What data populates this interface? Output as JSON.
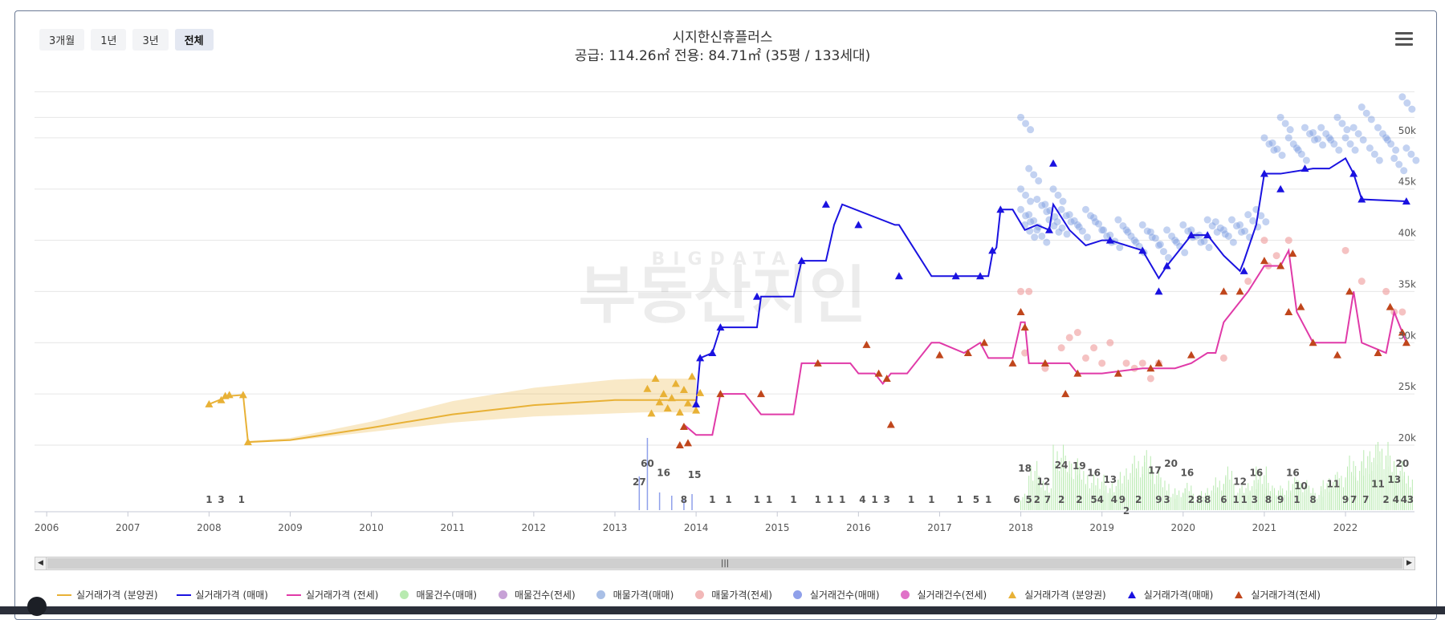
{
  "range_buttons": [
    "3개월",
    "1년",
    "3년",
    "전체"
  ],
  "active_range": "전체",
  "title": "시지한신휴플러스",
  "subtitle": "공급: 114.26㎡ 전용: 84.71㎡ (35평 / 133세대)",
  "watermark": {
    "small": "BIGDATA",
    "large": "부동산지인"
  },
  "legend": [
    {
      "label": "실거래가격 (분양권)",
      "symbol": "line",
      "color": "#e8b136"
    },
    {
      "label": "실거래가격 (매매)",
      "symbol": "line",
      "color": "#1a12e0"
    },
    {
      "label": "실거래가격 (전세)",
      "symbol": "line",
      "color": "#e03aa8"
    },
    {
      "label": "매물건수(매매)",
      "symbol": "circle",
      "color": "#b8eab0"
    },
    {
      "label": "매물건수(전세)",
      "symbol": "circle",
      "color": "#c7a1d6"
    },
    {
      "label": "매물가격(매매)",
      "symbol": "circle",
      "color": "#a9bfe6"
    },
    {
      "label": "매물가격(전세)",
      "symbol": "circle",
      "color": "#f2b8b8"
    },
    {
      "label": "실거래건수(매매)",
      "symbol": "circle",
      "color": "#8fa0ea"
    },
    {
      "label": "실거래건수(전세)",
      "symbol": "circle",
      "color": "#e072c8"
    },
    {
      "label": "실거래가격 (분양권)",
      "symbol": "triangle",
      "color": "#e8b136"
    },
    {
      "label": "실거래가격(매매)",
      "symbol": "triangle",
      "color": "#1a12e0"
    },
    {
      "label": "실거래가격(전세)",
      "symbol": "triangle",
      "color": "#c0461c"
    }
  ],
  "chart_data": {
    "type": "line",
    "title": "시지한신휴플러스",
    "subtitle": "공급: 114.26㎡ 전용: 84.71㎡ (35평 / 133세대)",
    "x_ticks": [
      "2006",
      "2007",
      "2008",
      "2009",
      "2010",
      "2011",
      "2012",
      "2013",
      "2014",
      "2015",
      "2016",
      "2017",
      "2018",
      "2019",
      "2020",
      "2021",
      "2022"
    ],
    "xlim": [
      2005.85,
      2022.85
    ],
    "y_ticks": [
      "20k",
      "25k",
      "30k",
      "35k",
      "40k",
      "45k",
      "50k"
    ],
    "y_tick_values": [
      20000,
      25000,
      30000,
      35000,
      40000,
      45000,
      50000
    ],
    "ylim": [
      13500,
      55000
    ],
    "grid": true,
    "legend_position": "bottom",
    "colors": {
      "presale": "#e8b136",
      "sale": "#1a12e0",
      "jeonse": "#e03aa8",
      "jeonse_marker": "#c0461c",
      "listing_sale_dot": "#7a9be0",
      "listing_jeonse_dot": "#ef9a9a",
      "listing_count_sale": "#b8eab0",
      "listing_count_jeonse": "#c7a1d6",
      "tx_count_sale": "#8fa0ea",
      "grid": "#e6e6e6"
    },
    "presale_line": {
      "x": [
        2008.0,
        2008.25,
        2008.42,
        2008.48,
        2009.0,
        2010.0,
        2011.0,
        2012.0,
        2013.0,
        2013.35,
        2014.0
      ],
      "y": [
        24000,
        24800,
        24900,
        20300,
        20500,
        21700,
        23000,
        23900,
        24400,
        24400,
        24400
      ],
      "band_high": [
        24000,
        24800,
        24900,
        20400,
        20700,
        22300,
        24300,
        25600,
        26400,
        26500,
        26500
      ],
      "band_low": [
        24000,
        24800,
        24900,
        20300,
        20400,
        21300,
        22200,
        22800,
        23100,
        23200,
        23200
      ]
    },
    "presale_markers": {
      "x": [
        2008.0,
        2008.15,
        2008.2,
        2008.25,
        2008.42,
        2008.48,
        2013.4,
        2013.45,
        2013.5,
        2013.55,
        2013.6,
        2013.65,
        2013.7,
        2013.75,
        2013.8,
        2013.85,
        2013.9,
        2013.95,
        2014.0,
        2014.05
      ],
      "y": [
        24000,
        24400,
        24800,
        24900,
        24900,
        20300,
        25500,
        23100,
        26500,
        24200,
        25000,
        23600,
        24600,
        26000,
        23200,
        25400,
        24100,
        26700,
        23400,
        25100
      ]
    },
    "sale_line": {
      "x": [
        2014.0,
        2014.05,
        2014.2,
        2014.3,
        2014.4,
        2014.75,
        2014.8,
        2015.2,
        2015.3,
        2015.6,
        2015.7,
        2015.8,
        2016.45,
        2016.5,
        2016.9,
        2017.2,
        2017.6,
        2017.65,
        2017.7,
        2017.75,
        2017.9,
        2018.05,
        2018.2,
        2018.35,
        2018.4,
        2018.6,
        2018.8,
        2019.0,
        2019.1,
        2019.5,
        2019.7,
        2019.8,
        2019.9,
        2020.1,
        2020.3,
        2020.5,
        2020.7,
        2020.75,
        2020.9,
        2021.0,
        2021.2,
        2021.6,
        2021.8,
        2022.0,
        2022.1,
        2022.2,
        2022.75
      ],
      "y": [
        24000,
        28500,
        29000,
        31500,
        31500,
        31500,
        34500,
        34500,
        38000,
        38000,
        41500,
        43500,
        41500,
        41500,
        36500,
        36500,
        36500,
        38700,
        39300,
        43000,
        43000,
        41000,
        41500,
        41000,
        43500,
        41000,
        39500,
        40000,
        40000,
        39000,
        36300,
        37500,
        38500,
        40500,
        40500,
        38500,
        37000,
        38000,
        41500,
        46500,
        46500,
        47000,
        47000,
        48000,
        46500,
        44000,
        43800
      ]
    },
    "sale_markers": {
      "x": [
        2014.0,
        2014.05,
        2014.2,
        2014.3,
        2014.75,
        2015.3,
        2015.6,
        2016.0,
        2016.5,
        2017.2,
        2017.5,
        2017.65,
        2017.75,
        2018.35,
        2018.4,
        2019.1,
        2019.5,
        2019.7,
        2019.8,
        2020.1,
        2020.3,
        2020.75,
        2021.0,
        2021.2,
        2021.5,
        2022.1,
        2022.2,
        2022.75
      ],
      "y": [
        24000,
        28500,
        29000,
        31500,
        34500,
        38000,
        43500,
        41500,
        36500,
        36500,
        36500,
        39000,
        43000,
        41000,
        47500,
        40000,
        39000,
        35000,
        37500,
        40500,
        40500,
        37000,
        46500,
        45000,
        47000,
        46500,
        44000,
        43800
      ]
    },
    "jeonse_line": {
      "x": [
        2013.85,
        2014.0,
        2014.2,
        2014.3,
        2014.6,
        2014.8,
        2015.2,
        2015.3,
        2015.5,
        2015.9,
        2016.0,
        2016.2,
        2016.3,
        2016.4,
        2016.6,
        2016.9,
        2017.0,
        2017.3,
        2017.5,
        2017.6,
        2017.9,
        2018.0,
        2018.05,
        2018.1,
        2018.3,
        2018.6,
        2018.7,
        2019.0,
        2019.5,
        2019.9,
        2020.1,
        2020.3,
        2020.4,
        2020.5,
        2020.6,
        2020.8,
        2021.0,
        2021.2,
        2021.3,
        2021.4,
        2021.6,
        2022.0,
        2022.1,
        2022.2,
        2022.5,
        2022.6,
        2022.75
      ],
      "y": [
        22000,
        21000,
        21000,
        25000,
        25000,
        23000,
        23000,
        28000,
        28000,
        28000,
        27000,
        27000,
        26000,
        27000,
        27000,
        30000,
        30000,
        29000,
        30000,
        28500,
        28500,
        32000,
        32000,
        28000,
        28000,
        28000,
        27000,
        27000,
        27500,
        27500,
        28000,
        29000,
        29000,
        32000,
        33000,
        35000,
        37500,
        37500,
        39000,
        33000,
        30000,
        30000,
        35000,
        30000,
        29000,
        33000,
        30000
      ]
    },
    "jeonse_markers": {
      "x": [
        2013.8,
        2013.85,
        2013.9,
        2014.3,
        2014.8,
        2015.5,
        2016.1,
        2016.25,
        2016.35,
        2016.4,
        2017.0,
        2017.35,
        2017.55,
        2017.9,
        2018.0,
        2018.05,
        2018.3,
        2018.55,
        2018.7,
        2019.2,
        2019.6,
        2019.7,
        2020.1,
        2020.5,
        2020.7,
        2021.0,
        2021.2,
        2021.3,
        2021.35,
        2021.45,
        2021.6,
        2021.9,
        2022.05,
        2022.4,
        2022.55,
        2022.7,
        2022.75
      ],
      "y": [
        20000,
        21800,
        20200,
        25000,
        25000,
        28000,
        29800,
        27000,
        26500,
        22000,
        28800,
        29000,
        30000,
        28000,
        33000,
        31500,
        28000,
        25000,
        27000,
        27000,
        27500,
        28000,
        28800,
        35000,
        35000,
        38000,
        37500,
        33000,
        38700,
        33500,
        30000,
        28800,
        35000,
        29000,
        33500,
        31000,
        30000
      ]
    },
    "listing_sale_points": {
      "x": [
        2018.0,
        2018.0,
        2018.0,
        2018.05,
        2018.1,
        2018.1,
        2018.2,
        2018.2,
        2018.3,
        2018.35,
        2018.4,
        2018.45,
        2018.5,
        2018.6,
        2018.7,
        2018.8,
        2018.9,
        2019.0,
        2019.1,
        2019.2,
        2019.3,
        2019.4,
        2019.5,
        2019.6,
        2019.7,
        2019.8,
        2019.9,
        2020.0,
        2020.1,
        2020.2,
        2020.3,
        2020.4,
        2020.5,
        2020.6,
        2020.7,
        2020.8,
        2020.9,
        2021.0,
        2021.1,
        2021.2,
        2021.3,
        2021.4,
        2021.5,
        2021.6,
        2021.7,
        2021.8,
        2021.9,
        2022.0,
        2022.1,
        2022.2,
        2022.3,
        2022.4,
        2022.5,
        2022.6,
        2022.7,
        2022.75
      ],
      "y": [
        45000,
        43000,
        52000,
        41500,
        47000,
        42500,
        44000,
        41000,
        43500,
        42000,
        45000,
        41800,
        43000,
        42500,
        41500,
        43000,
        42200,
        41000,
        40500,
        42000,
        41000,
        40000,
        41500,
        40800,
        39500,
        41000,
        40000,
        41500,
        41000,
        40500,
        42000,
        41800,
        41000,
        42000,
        41500,
        42500,
        43000,
        50000,
        49500,
        52000,
        50000,
        49000,
        51000,
        50500,
        51000,
        50000,
        52000,
        50000,
        51000,
        53000,
        49000,
        51000,
        50000,
        48000,
        54000,
        49000
      ]
    },
    "listing_jeonse_points": {
      "x": [
        2018.0,
        2018.05,
        2018.1,
        2018.3,
        2018.5,
        2018.6,
        2018.7,
        2018.8,
        2018.9,
        2019.0,
        2019.1,
        2019.3,
        2019.4,
        2019.5,
        2019.6,
        2019.7,
        2020.5,
        2020.8,
        2021.0,
        2021.05,
        2021.15,
        2021.3,
        2022.0,
        2022.2,
        2022.5,
        2022.6,
        2022.7
      ],
      "y": [
        35000,
        29000,
        35000,
        27500,
        29500,
        30500,
        31000,
        28500,
        29500,
        28000,
        30000,
        28000,
        27500,
        28000,
        26500,
        28000,
        28500,
        36000,
        40000,
        37500,
        38500,
        40000,
        39000,
        36000,
        35000,
        33000,
        33000
      ]
    },
    "listing_count_sale_bars": {
      "x": [
        2018.0,
        2018.1,
        2018.2,
        2018.3,
        2018.4,
        2018.5,
        2018.6,
        2018.7,
        2018.8,
        2018.9,
        2019.0,
        2019.1,
        2019.2,
        2019.3,
        2019.4,
        2019.5,
        2019.6,
        2019.7,
        2019.8,
        2019.9,
        2020.0,
        2020.1,
        2020.2,
        2020.3,
        2020.4,
        2020.5,
        2020.6,
        2020.7,
        2020.8,
        2020.9,
        2021.0,
        2021.1,
        2021.2,
        2021.3,
        2021.4,
        2021.5,
        2021.6,
        2021.7,
        2021.8,
        2021.9,
        2022.0,
        2022.1,
        2022.2,
        2022.3,
        2022.4,
        2022.5,
        2022.6,
        2022.7
      ],
      "counts": [
        6,
        18,
        12,
        8,
        24,
        20,
        19,
        16,
        10,
        13,
        9,
        11,
        14,
        17,
        20,
        22,
        16,
        12,
        6,
        8,
        10,
        5,
        7,
        9,
        12,
        16,
        8,
        9,
        11,
        16,
        10,
        9,
        8,
        12,
        11,
        9,
        7,
        11,
        13,
        14,
        20,
        18,
        22,
        24,
        25,
        20,
        18,
        14
      ]
    },
    "count_labels": [
      {
        "x": 2008.0,
        "label": "1"
      },
      {
        "x": 2008.15,
        "label": "3"
      },
      {
        "x": 2008.4,
        "label": "1"
      },
      {
        "x": 2013.3,
        "label": "27"
      },
      {
        "x": 2013.4,
        "label": "60"
      },
      {
        "x": 2013.6,
        "label": "16"
      },
      {
        "x": 2013.85,
        "label": "8"
      },
      {
        "x": 2013.98,
        "label": "15"
      },
      {
        "x": 2014.2,
        "label": "1"
      },
      {
        "x": 2014.4,
        "label": "1"
      },
      {
        "x": 2014.75,
        "label": "1"
      },
      {
        "x": 2014.9,
        "label": "1"
      },
      {
        "x": 2015.2,
        "label": "1"
      },
      {
        "x": 2015.5,
        "label": "1"
      },
      {
        "x": 2015.65,
        "label": "1"
      },
      {
        "x": 2015.8,
        "label": "1"
      },
      {
        "x": 2016.05,
        "label": "4"
      },
      {
        "x": 2016.2,
        "label": "1"
      },
      {
        "x": 2016.35,
        "label": "3"
      },
      {
        "x": 2016.65,
        "label": "1"
      },
      {
        "x": 2016.9,
        "label": "1"
      },
      {
        "x": 2017.25,
        "label": "1"
      },
      {
        "x": 2017.45,
        "label": "5"
      },
      {
        "x": 2017.6,
        "label": "1"
      },
      {
        "x": 2017.95,
        "label": "6"
      },
      {
        "x": 2018.05,
        "label": "18"
      },
      {
        "x": 2018.1,
        "label": "5"
      },
      {
        "x": 2018.2,
        "label": "2"
      },
      {
        "x": 2018.28,
        "label": "12"
      },
      {
        "x": 2018.33,
        "label": "7"
      },
      {
        "x": 2018.5,
        "label": "24"
      },
      {
        "x": 2018.5,
        "label": "2"
      },
      {
        "x": 2018.72,
        "label": "19"
      },
      {
        "x": 2018.72,
        "label": "2"
      },
      {
        "x": 2018.9,
        "label": "16"
      },
      {
        "x": 2018.9,
        "label": "5"
      },
      {
        "x": 2018.98,
        "label": "4"
      },
      {
        "x": 2019.1,
        "label": "13"
      },
      {
        "x": 2019.15,
        "label": "4"
      },
      {
        "x": 2019.25,
        "label": "9"
      },
      {
        "x": 2019.3,
        "label": "2"
      },
      {
        "x": 2019.45,
        "label": "2"
      },
      {
        "x": 2019.65,
        "label": "17"
      },
      {
        "x": 2019.7,
        "label": "9"
      },
      {
        "x": 2019.8,
        "label": "3"
      },
      {
        "x": 2019.85,
        "label": "20"
      },
      {
        "x": 2020.05,
        "label": "16"
      },
      {
        "x": 2020.1,
        "label": "2"
      },
      {
        "x": 2020.2,
        "label": "8"
      },
      {
        "x": 2020.3,
        "label": "8"
      },
      {
        "x": 2020.5,
        "label": "6"
      },
      {
        "x": 2020.65,
        "label": "1"
      },
      {
        "x": 2020.75,
        "label": "1"
      },
      {
        "x": 2020.7,
        "label": "12"
      },
      {
        "x": 2020.9,
        "label": "16"
      },
      {
        "x": 2020.88,
        "label": "3"
      },
      {
        "x": 2021.05,
        "label": "8"
      },
      {
        "x": 2021.2,
        "label": "9"
      },
      {
        "x": 2021.35,
        "label": "16"
      },
      {
        "x": 2021.45,
        "label": "10"
      },
      {
        "x": 2021.4,
        "label": "1"
      },
      {
        "x": 2021.6,
        "label": "8"
      },
      {
        "x": 2021.85,
        "label": "11"
      },
      {
        "x": 2022.0,
        "label": "9"
      },
      {
        "x": 2022.1,
        "label": "7"
      },
      {
        "x": 2022.25,
        "label": "7"
      },
      {
        "x": 2022.4,
        "label": "11"
      },
      {
        "x": 2022.6,
        "label": "13"
      },
      {
        "x": 2022.7,
        "label": "20"
      },
      {
        "x": 2022.5,
        "label": "2"
      },
      {
        "x": 2022.62,
        "label": "4"
      },
      {
        "x": 2022.72,
        "label": "4"
      },
      {
        "x": 2022.8,
        "label": "3"
      }
    ]
  }
}
